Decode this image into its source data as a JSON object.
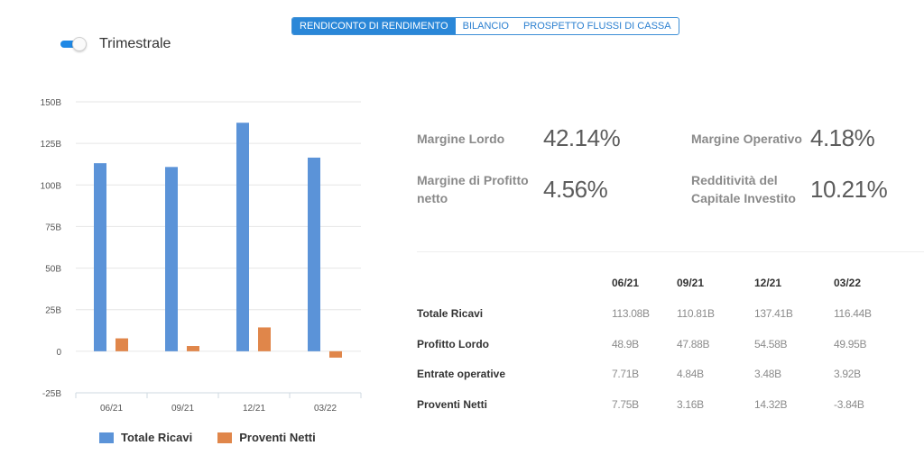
{
  "tabs": [
    {
      "label": "RENDICONTO DI RENDIMENTO",
      "active": true
    },
    {
      "label": "BILANCIO",
      "active": false
    },
    {
      "label": "PROSPETTO FLUSSI DI CASSA",
      "active": false
    }
  ],
  "toggle": {
    "label": "Trimestrale",
    "on": true
  },
  "chart_data": {
    "type": "bar",
    "categories": [
      "06/21",
      "09/21",
      "12/21",
      "03/22"
    ],
    "series": [
      {
        "name": "Totale Ricavi",
        "color": "#5b93d8",
        "values": [
          113.08,
          110.81,
          137.41,
          116.44
        ]
      },
      {
        "name": "Proventi Netti",
        "color": "#e0864a",
        "values": [
          7.75,
          3.16,
          14.32,
          -3.84
        ]
      }
    ],
    "yticks": [
      "150B",
      "125B",
      "100B",
      "75B",
      "50B",
      "25B",
      "0",
      "-25B"
    ],
    "ylim": [
      -25,
      150
    ],
    "grid": true,
    "legend": "bottom"
  },
  "ratios": [
    {
      "label": "Margine Lordo",
      "value": "42.14%"
    },
    {
      "label": "Margine Operativo",
      "value": "4.18%"
    },
    {
      "label": "Margine di Profitto netto",
      "value": "4.56%"
    },
    {
      "label": "Redditività del Capitale Investito",
      "value": "10.21%"
    }
  ],
  "table": {
    "columns": [
      "06/21",
      "09/21",
      "12/21",
      "03/22"
    ],
    "rows": [
      {
        "label": "Totale Ricavi",
        "values": [
          "113.08B",
          "110.81B",
          "137.41B",
          "116.44B"
        ]
      },
      {
        "label": "Profitto Lordo",
        "values": [
          "48.9B",
          "47.88B",
          "54.58B",
          "49.95B"
        ]
      },
      {
        "label": "Entrate operative",
        "values": [
          "7.71B",
          "4.84B",
          "3.48B",
          "3.92B"
        ]
      },
      {
        "label": "Proventi Netti",
        "values": [
          "7.75B",
          "3.16B",
          "14.32B",
          "-3.84B"
        ]
      }
    ]
  }
}
